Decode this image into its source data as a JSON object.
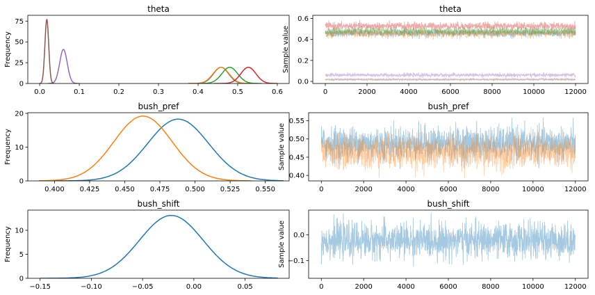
{
  "figure": {
    "y_label_density": "Frequency",
    "y_label_trace": "Sample value",
    "palette": [
      "#1f77b4",
      "#ff7f0e",
      "#2ca02c",
      "#d62728",
      "#9467bd",
      "#8c564b"
    ]
  },
  "chart_data": [
    {
      "id": "theta_density",
      "type": "line",
      "title": "theta",
      "ylabel": "Frequency",
      "xlim": [
        -0.03,
        0.63
      ],
      "ylim": [
        0,
        82
      ],
      "xticks": [
        "0.0",
        "0.1",
        "0.2",
        "0.3",
        "0.4",
        "0.5",
        "0.6"
      ],
      "yticks": [
        "0",
        "25",
        "50",
        "75"
      ],
      "series": [
        {
          "kind": "gauss",
          "mu": 0.458,
          "sigma": 0.019,
          "peak": 19.5,
          "color": "#1f77b4",
          "range": [
            0.375,
            0.54
          ]
        },
        {
          "kind": "gauss",
          "mu": 0.458,
          "sigma": 0.02,
          "peak": 19.5,
          "color": "#ff7f0e",
          "range": [
            0.375,
            0.54
          ]
        },
        {
          "kind": "gauss",
          "mu": 0.48,
          "sigma": 0.02,
          "peak": 19.5,
          "color": "#2ca02c",
          "range": [
            0.4,
            0.56
          ]
        },
        {
          "kind": "gauss",
          "mu": 0.527,
          "sigma": 0.019,
          "peak": 19.5,
          "color": "#d62728",
          "range": [
            0.44,
            0.6
          ]
        },
        {
          "kind": "gauss",
          "mu": 0.06,
          "sigma": 0.0095,
          "peak": 41,
          "color": "#9467bd",
          "range": [
            0.02,
            0.1
          ]
        },
        {
          "kind": "gauss",
          "mu": 0.018,
          "sigma": 0.0048,
          "peak": 77,
          "color": "#8c564b",
          "range": [
            0.0,
            0.036
          ]
        }
      ]
    },
    {
      "id": "theta_trace",
      "type": "line",
      "title": "theta",
      "ylabel": "Sample value",
      "xlim": [
        -600,
        12600
      ],
      "ylim": [
        -0.02,
        0.63
      ],
      "xticks": [
        "0",
        "2000",
        "4000",
        "6000",
        "8000",
        "10000",
        "12000"
      ],
      "yticks": [
        "0.0",
        "0.2",
        "0.4",
        "0.6"
      ],
      "series": [
        {
          "kind": "trace",
          "center": 0.458,
          "spread": 0.055,
          "color": "#1f77b4"
        },
        {
          "kind": "trace",
          "center": 0.458,
          "spread": 0.06,
          "color": "#ff7f0e"
        },
        {
          "kind": "trace",
          "center": 0.48,
          "spread": 0.055,
          "color": "#2ca02c"
        },
        {
          "kind": "trace",
          "center": 0.527,
          "spread": 0.055,
          "color": "#d62728"
        },
        {
          "kind": "trace",
          "center": 0.06,
          "spread": 0.028,
          "color": "#9467bd"
        },
        {
          "kind": "trace",
          "center": 0.018,
          "spread": 0.014,
          "color": "#8c564b"
        }
      ]
    },
    {
      "id": "bush_pref_density",
      "type": "line",
      "title": "bush_pref",
      "ylabel": "Frequency",
      "xlim": [
        0.381,
        0.567
      ],
      "ylim": [
        0,
        20.2
      ],
      "xticks": [
        "0.400",
        "0.425",
        "0.450",
        "0.475",
        "0.500",
        "0.525",
        "0.550"
      ],
      "yticks": [
        "0",
        "10",
        "20"
      ],
      "series": [
        {
          "kind": "gauss",
          "mu": 0.488,
          "sigma": 0.0217,
          "peak": 18.3,
          "color": "#1f77b4",
          "range": [
            0.4,
            0.563
          ]
        },
        {
          "kind": "gauss",
          "mu": 0.463,
          "sigma": 0.0207,
          "peak": 19.2,
          "color": "#ff7f0e",
          "range": [
            0.389,
            0.54
          ]
        }
      ]
    },
    {
      "id": "bush_pref_trace",
      "type": "line",
      "title": "bush_pref",
      "ylabel": "Sample value",
      "xlim": [
        -600,
        12600
      ],
      "ylim": [
        0.385,
        0.572
      ],
      "xticks": [
        "0",
        "2000",
        "4000",
        "6000",
        "8000",
        "10000",
        "12000"
      ],
      "yticks": [
        "0.40",
        "0.45",
        "0.50",
        "0.55"
      ],
      "series": [
        {
          "kind": "trace",
          "center": 0.488,
          "spread": 0.07,
          "color": "#1f77b4"
        },
        {
          "kind": "trace",
          "center": 0.463,
          "spread": 0.07,
          "color": "#ff7f0e"
        }
      ]
    },
    {
      "id": "bush_shift_density",
      "type": "line",
      "title": "bush_shift",
      "ylabel": "Frequency",
      "xlim": [
        -0.162,
        0.093
      ],
      "ylim": [
        0,
        14.2
      ],
      "xticks": [
        "−0.15",
        "−0.10",
        "−0.05",
        "0.00",
        "0.05"
      ],
      "yticks": [
        "0",
        "5",
        "10"
      ],
      "series": [
        {
          "kind": "gauss",
          "mu": -0.022,
          "sigma": 0.031,
          "peak": 13.1,
          "color": "#1f77b4",
          "range": [
            -0.15,
            0.082
          ]
        }
      ]
    },
    {
      "id": "bush_shift_trace",
      "type": "line",
      "title": "bush_shift",
      "ylabel": "Sample value",
      "xlim": [
        -600,
        12600
      ],
      "ylim": [
        -0.168,
        0.095
      ],
      "xticks": [
        "0",
        "2000",
        "4000",
        "6000",
        "8000",
        "10000",
        "12000"
      ],
      "yticks": [
        "−0.1",
        "0.0"
      ],
      "series": [
        {
          "kind": "trace",
          "center": -0.022,
          "spread": 0.105,
          "color": "#1f77b4"
        }
      ]
    }
  ]
}
